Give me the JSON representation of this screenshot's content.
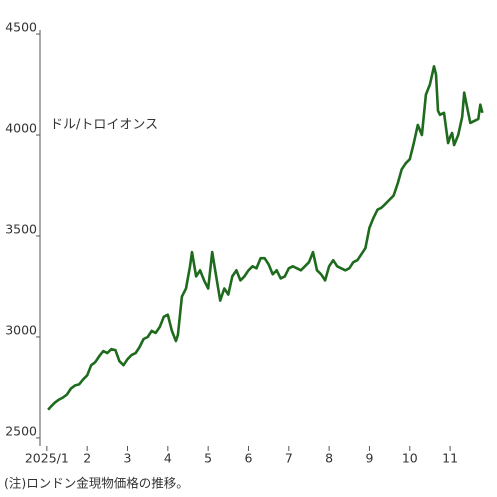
{
  "chart_data": {
    "type": "line",
    "annotation": "ドル/トロイオンス",
    "note": "(注)ロンドン金現物価格の推移。",
    "x": [
      1.03,
      1.1,
      1.2,
      1.3,
      1.4,
      1.5,
      1.6,
      1.7,
      1.8,
      1.9,
      2.0,
      2.1,
      2.2,
      2.3,
      2.4,
      2.5,
      2.6,
      2.7,
      2.8,
      2.9,
      3.0,
      3.1,
      3.2,
      3.3,
      3.4,
      3.5,
      3.6,
      3.7,
      3.8,
      3.9,
      4.0,
      4.1,
      4.2,
      4.25,
      4.35,
      4.45,
      4.55,
      4.6,
      4.7,
      4.8,
      4.9,
      5.0,
      5.1,
      5.2,
      5.3,
      5.4,
      5.5,
      5.6,
      5.7,
      5.8,
      5.9,
      6.0,
      6.1,
      6.2,
      6.3,
      6.4,
      6.5,
      6.6,
      6.7,
      6.8,
      6.9,
      7.0,
      7.1,
      7.2,
      7.3,
      7.4,
      7.5,
      7.6,
      7.7,
      7.8,
      7.9,
      8.0,
      8.1,
      8.2,
      8.3,
      8.4,
      8.5,
      8.6,
      8.7,
      8.8,
      8.9,
      9.0,
      9.1,
      9.2,
      9.3,
      9.4,
      9.5,
      9.6,
      9.7,
      9.8,
      9.9,
      10.0,
      10.1,
      10.2,
      10.3,
      10.4,
      10.5,
      10.6,
      10.65,
      10.7,
      10.75,
      10.85,
      10.95,
      11.0,
      11.05,
      11.1,
      11.2,
      11.3,
      11.35,
      11.4,
      11.5,
      11.6,
      11.7,
      11.75,
      11.8
    ],
    "series": [
      {
        "color": "#1e6b1e",
        "values": [
          2640,
          2655,
          2675,
          2690,
          2700,
          2715,
          2745,
          2760,
          2765,
          2790,
          2810,
          2860,
          2875,
          2905,
          2930,
          2920,
          2940,
          2935,
          2880,
          2860,
          2890,
          2910,
          2920,
          2950,
          2990,
          3000,
          3030,
          3020,
          3050,
          3100,
          3110,
          3030,
          2980,
          3010,
          3200,
          3240,
          3350,
          3420,
          3300,
          3330,
          3280,
          3240,
          3420,
          3300,
          3180,
          3240,
          3210,
          3300,
          3330,
          3280,
          3300,
          3330,
          3350,
          3340,
          3390,
          3390,
          3360,
          3310,
          3330,
          3290,
          3300,
          3340,
          3350,
          3340,
          3330,
          3350,
          3370,
          3420,
          3330,
          3310,
          3280,
          3350,
          3380,
          3350,
          3340,
          3330,
          3340,
          3370,
          3380,
          3410,
          3440,
          3540,
          3590,
          3630,
          3640,
          3660,
          3680,
          3700,
          3760,
          3830,
          3860,
          3880,
          3960,
          4050,
          4000,
          4200,
          4250,
          4340,
          4300,
          4120,
          4100,
          4110,
          3960,
          3990,
          4010,
          3950,
          4000,
          4090,
          4210,
          4160,
          4060,
          4070,
          4080,
          4150,
          4110
        ]
      }
    ],
    "xlim": [
      0.83,
      11.94
    ],
    "xticks": [
      {
        "value": 1,
        "label": "2025/1"
      },
      2,
      3,
      4,
      5,
      6,
      7,
      8,
      9,
      10,
      11
    ],
    "ylim": [
      2460,
      4520
    ],
    "yticks": [
      2500,
      3000,
      3500,
      4000,
      4500
    ]
  }
}
